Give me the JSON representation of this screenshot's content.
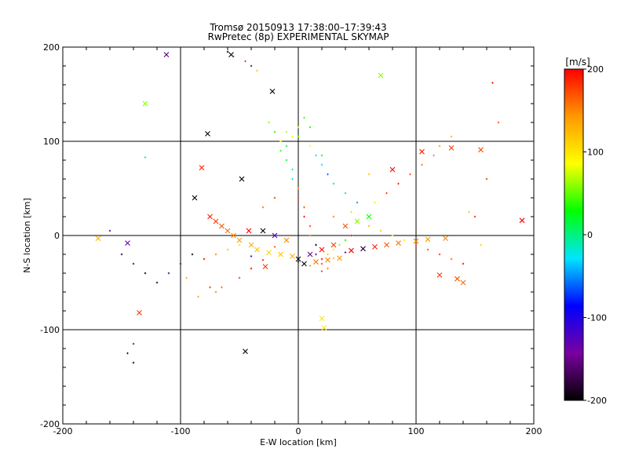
{
  "chart_data": {
    "type": "scatter",
    "title": "Tromsø 20150913 17:38:00–17:39:43",
    "subtitle": "RwPretec (8p) EXPERIMENTAL SKYMAP",
    "xlabel": "E-W location [km]",
    "ylabel": "N-S location [km]",
    "xlim": [
      -200,
      200
    ],
    "ylim": [
      -200,
      200
    ],
    "x_ticks": [
      -200,
      -100,
      0,
      100,
      200
    ],
    "y_ticks": [
      -200,
      -100,
      0,
      100,
      200
    ],
    "grid": true,
    "colorbar": {
      "label": "[m/s]",
      "range": [
        -200,
        200
      ],
      "ticks": [
        -200,
        -100,
        0,
        100,
        200
      ],
      "stops": [
        "#000000",
        "#7a00a0",
        "#0000ff",
        "#00e5ff",
        "#00ff00",
        "#ffff00",
        "#ff9900",
        "#ff0000"
      ]
    },
    "series": [
      {
        "name": "plus-markers",
        "marker": "+",
        "x": [
          -60,
          -55,
          -45,
          -40,
          -35,
          -25,
          -20,
          -15,
          -15,
          -10,
          -5,
          -5,
          0,
          0,
          5,
          5,
          10,
          10,
          15,
          15,
          20,
          20,
          25,
          25,
          30,
          35,
          40,
          45,
          -10,
          0,
          10,
          20,
          -20,
          -30,
          30,
          50,
          60,
          70,
          80,
          90,
          100,
          110,
          120,
          130,
          140,
          150,
          160,
          170,
          -90,
          -100,
          -110,
          -120,
          -130,
          -140,
          -150,
          -80,
          -70,
          -60,
          -50,
          -140,
          -145,
          -140,
          -75,
          0,
          5,
          -5,
          10,
          -10,
          15,
          20,
          25,
          30,
          40,
          50,
          -40,
          -50,
          -65,
          -70,
          -85,
          -95,
          60,
          45,
          65,
          75,
          85,
          95,
          105,
          115,
          120,
          130,
          145,
          155,
          165,
          -160,
          -130,
          0,
          10,
          20,
          30,
          40,
          -20,
          -30,
          -40
        ],
        "y": [
          195,
          190,
          185,
          180,
          175,
          120,
          110,
          100,
          90,
          80,
          70,
          60,
          50,
          40,
          30,
          20,
          10,
          0,
          -10,
          -20,
          -25,
          -30,
          -35,
          -20,
          -15,
          -10,
          -5,
          0,
          110,
          105,
          95,
          85,
          40,
          30,
          20,
          15,
          10,
          5,
          0,
          -5,
          -10,
          -15,
          -20,
          -25,
          -30,
          20,
          60,
          120,
          -20,
          -30,
          -40,
          -50,
          -40,
          -30,
          -20,
          -25,
          -20,
          -15,
          -10,
          -115,
          -125,
          -135,
          -55,
          115,
          125,
          105,
          115,
          95,
          85,
          75,
          65,
          55,
          45,
          35,
          -35,
          -45,
          -55,
          -60,
          -65,
          -45,
          65,
          25,
          35,
          45,
          55,
          65,
          75,
          85,
          95,
          105,
          25,
          -10,
          162,
          5,
          83,
          -28,
          -32,
          -38,
          -24,
          -18,
          -12,
          -26,
          -22
        ],
        "values": [
          -200,
          150,
          180,
          -160,
          120,
          60,
          30,
          80,
          40,
          20,
          0,
          -20,
          150,
          190,
          170,
          200,
          180,
          160,
          -200,
          -150,
          200,
          180,
          150,
          120,
          90,
          60,
          30,
          200,
          70,
          40,
          90,
          20,
          180,
          160,
          150,
          140,
          130,
          120,
          110,
          100,
          190,
          170,
          180,
          160,
          200,
          190,
          180,
          170,
          -200,
          -180,
          -160,
          -190,
          -200,
          -170,
          -180,
          200,
          150,
          120,
          100,
          -150,
          -180,
          -200,
          180,
          60,
          40,
          80,
          30,
          20,
          -10,
          -30,
          -60,
          0,
          10,
          -50,
          200,
          180,
          160,
          150,
          140,
          130,
          120,
          110,
          100,
          180,
          190,
          170,
          160,
          150,
          140,
          130,
          120,
          110,
          200,
          -120,
          0,
          -200,
          150,
          180,
          120,
          -160,
          170,
          190,
          -100
        ]
      },
      {
        "name": "x-markers",
        "marker": "x",
        "x": [
          -112,
          -57,
          -22,
          -77,
          -88,
          -45,
          -82,
          0,
          10,
          20,
          30,
          -10,
          -20,
          -30,
          40,
          50,
          60,
          80,
          105,
          130,
          155,
          190,
          125,
          -170,
          -145,
          -135,
          -48,
          -42,
          -28,
          5,
          15,
          25,
          35,
          -5,
          -15,
          -25,
          45,
          55,
          65,
          75,
          85,
          100,
          110,
          120,
          135,
          140,
          -75,
          -70,
          -65,
          -60,
          -55,
          -50,
          -40,
          -35,
          70,
          -130,
          20,
          22
        ],
        "y": [
          192,
          192,
          153,
          108,
          40,
          -123,
          72,
          -25,
          -20,
          -15,
          -10,
          -5,
          0,
          5,
          10,
          15,
          20,
          70,
          89,
          93,
          91,
          16,
          -3,
          -3,
          -8,
          -82,
          60,
          5,
          -33,
          -30,
          -28,
          -26,
          -24,
          -22,
          -20,
          -18,
          -16,
          -14,
          -12,
          -10,
          -8,
          -6,
          -4,
          -42,
          -46,
          -50,
          20,
          15,
          10,
          5,
          0,
          -5,
          -10,
          -15,
          170,
          140,
          -88,
          -98
        ],
        "values": [
          -160,
          -200,
          -200,
          -200,
          -200,
          -200,
          190,
          -200,
          -150,
          200,
          180,
          150,
          -120,
          -200,
          170,
          60,
          30,
          200,
          190,
          180,
          170,
          200,
          150,
          130,
          -130,
          180,
          -200,
          200,
          180,
          -200,
          160,
          150,
          140,
          130,
          120,
          110,
          200,
          -180,
          190,
          170,
          160,
          150,
          140,
          180,
          170,
          160,
          190,
          180,
          170,
          160,
          150,
          140,
          130,
          120,
          60,
          60,
          100,
          100
        ]
      }
    ]
  }
}
